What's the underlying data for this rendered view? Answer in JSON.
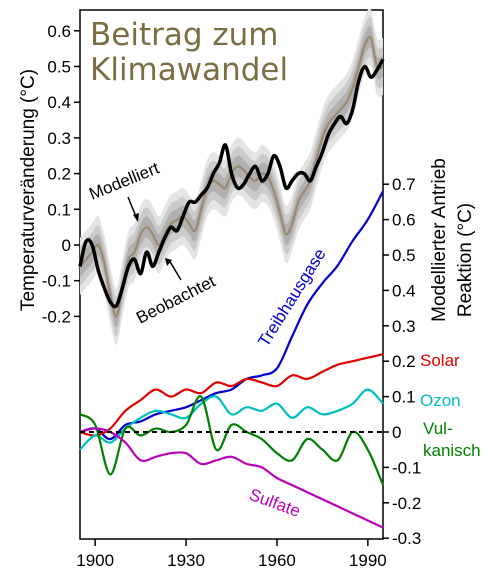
{
  "chart_data": [
    {
      "type": "line",
      "title": "Beitrag zum Klimawandel",
      "ylabel": "Temperaturveränderung (°C)",
      "ylim": [
        -0.3,
        0.65
      ],
      "yticks": [
        "0.6",
        "0.5",
        "0.4",
        "0.3",
        "0.2",
        "0.1",
        "0",
        "-0.1",
        "-0.2"
      ],
      "xlim": [
        1895,
        1995
      ],
      "xticks": [
        "1900",
        "1930",
        "1960",
        "1990"
      ],
      "uncertainty_band": true,
      "series": [
        {
          "name": "Modelliert",
          "color": "#9b8a70",
          "x": [
            1895,
            1897,
            1899,
            1901,
            1903,
            1905,
            1907,
            1909,
            1911,
            1913,
            1915,
            1917,
            1919,
            1921,
            1923,
            1925,
            1927,
            1929,
            1931,
            1933,
            1935,
            1937,
            1939,
            1941,
            1943,
            1945,
            1947,
            1949,
            1951,
            1953,
            1955,
            1957,
            1959,
            1961,
            1963,
            1965,
            1967,
            1969,
            1971,
            1973,
            1975,
            1977,
            1979,
            1981,
            1983,
            1985,
            1987,
            1989,
            1991,
            1993,
            1995
          ],
          "values": [
            -0.06,
            -0.04,
            -0.02,
            0.0,
            -0.05,
            -0.14,
            -0.2,
            -0.12,
            -0.04,
            -0.02,
            0.03,
            0.05,
            0.03,
            0.0,
            0.03,
            0.06,
            0.07,
            0.08,
            0.06,
            0.04,
            0.1,
            0.16,
            0.18,
            0.17,
            0.16,
            0.2,
            0.22,
            0.21,
            0.19,
            0.18,
            0.2,
            0.19,
            0.15,
            0.09,
            0.03,
            0.06,
            0.12,
            0.15,
            0.18,
            0.24,
            0.3,
            0.34,
            0.36,
            0.38,
            0.4,
            0.44,
            0.5,
            0.56,
            0.58,
            0.5,
            0.5
          ]
        },
        {
          "name": "Beobachtet",
          "color": "#000000",
          "x": [
            1895,
            1897,
            1899,
            1901,
            1903,
            1905,
            1907,
            1909,
            1911,
            1913,
            1915,
            1917,
            1919,
            1921,
            1923,
            1925,
            1927,
            1929,
            1931,
            1933,
            1935,
            1937,
            1939,
            1941,
            1943,
            1945,
            1947,
            1949,
            1951,
            1953,
            1955,
            1957,
            1959,
            1961,
            1963,
            1965,
            1967,
            1969,
            1971,
            1973,
            1975,
            1977,
            1979,
            1981,
            1983,
            1985,
            1987,
            1989,
            1991,
            1993,
            1995
          ],
          "values": [
            -0.06,
            0.01,
            0.0,
            -0.07,
            -0.12,
            -0.16,
            -0.17,
            -0.12,
            -0.06,
            -0.04,
            -0.08,
            -0.02,
            -0.06,
            -0.02,
            0.02,
            0.05,
            0.04,
            0.08,
            0.12,
            0.12,
            0.14,
            0.16,
            0.2,
            0.23,
            0.28,
            0.2,
            0.16,
            0.17,
            0.2,
            0.22,
            0.18,
            0.2,
            0.25,
            0.22,
            0.16,
            0.18,
            0.2,
            0.2,
            0.18,
            0.22,
            0.26,
            0.31,
            0.34,
            0.36,
            0.34,
            0.38,
            0.46,
            0.5,
            0.47,
            0.49,
            0.52
          ]
        }
      ]
    },
    {
      "type": "line",
      "ylabel": "Modellierter Antrieb Reaktion (°C)",
      "ylim": [
        -0.3,
        0.7
      ],
      "yticks": [
        "0.7",
        "0.6",
        "0.5",
        "0.4",
        "0.3",
        "0.2",
        "0.1",
        "0",
        "-0.1",
        "-0.2",
        "-0.3"
      ],
      "xlim": [
        1895,
        1995
      ],
      "series": [
        {
          "name": "Treibhausgase",
          "color": "#0000cc",
          "x": [
            1895,
            1900,
            1905,
            1910,
            1915,
            1920,
            1925,
            1930,
            1935,
            1940,
            1945,
            1950,
            1955,
            1960,
            1965,
            1970,
            1975,
            1980,
            1985,
            1990,
            1995
          ],
          "values": [
            0.0,
            0.01,
            -0.02,
            0.02,
            0.03,
            0.05,
            0.06,
            0.07,
            0.09,
            0.11,
            0.12,
            0.15,
            0.16,
            0.18,
            0.27,
            0.36,
            0.42,
            0.47,
            0.54,
            0.6,
            0.68
          ]
        },
        {
          "name": "Solar",
          "color": "#e00000",
          "x": [
            1895,
            1900,
            1905,
            1910,
            1915,
            1920,
            1925,
            1930,
            1935,
            1940,
            1945,
            1950,
            1955,
            1960,
            1965,
            1970,
            1975,
            1980,
            1985,
            1990,
            1995
          ],
          "values": [
            0.0,
            -0.01,
            0.01,
            0.06,
            0.09,
            0.12,
            0.1,
            0.12,
            0.11,
            0.14,
            0.13,
            0.15,
            0.14,
            0.13,
            0.16,
            0.15,
            0.17,
            0.19,
            0.2,
            0.21,
            0.22
          ]
        },
        {
          "name": "Ozon",
          "color": "#00bfbf",
          "x": [
            1895,
            1900,
            1905,
            1910,
            1915,
            1920,
            1925,
            1930,
            1935,
            1940,
            1945,
            1950,
            1955,
            1960,
            1965,
            1970,
            1975,
            1980,
            1985,
            1990,
            1995
          ],
          "values": [
            -0.05,
            -0.01,
            -0.03,
            0.01,
            0.04,
            0.06,
            0.05,
            0.04,
            0.08,
            0.1,
            0.05,
            0.07,
            0.06,
            0.08,
            0.04,
            0.07,
            0.05,
            0.06,
            0.08,
            0.12,
            0.08
          ]
        },
        {
          "name": "Vulkanisch",
          "label_lines": [
            "Vul-",
            "kanisch"
          ],
          "color": "#008000",
          "x": [
            1895,
            1900,
            1905,
            1910,
            1915,
            1920,
            1925,
            1930,
            1935,
            1940,
            1945,
            1950,
            1955,
            1960,
            1965,
            1970,
            1975,
            1980,
            1985,
            1990,
            1995
          ],
          "values": [
            0.05,
            0.02,
            -0.12,
            0.01,
            -0.01,
            0.01,
            0.0,
            0.02,
            0.1,
            -0.05,
            0.02,
            0.0,
            -0.02,
            -0.06,
            -0.08,
            -0.02,
            -0.05,
            -0.08,
            0.0,
            -0.05,
            -0.15
          ]
        },
        {
          "name": "Sulfate",
          "color": "#bb00bb",
          "x": [
            1895,
            1900,
            1905,
            1910,
            1915,
            1920,
            1925,
            1930,
            1935,
            1940,
            1945,
            1950,
            1955,
            1960,
            1965,
            1970,
            1975,
            1980,
            1985,
            1990,
            1995
          ],
          "values": [
            0.0,
            0.01,
            0.0,
            -0.03,
            -0.08,
            -0.07,
            -0.06,
            -0.06,
            -0.09,
            -0.08,
            -0.07,
            -0.09,
            -0.1,
            -0.13,
            -0.15,
            -0.17,
            -0.19,
            -0.21,
            -0.23,
            -0.25,
            -0.27
          ]
        }
      ]
    }
  ],
  "annotations": {
    "modelliert": "Modelliert",
    "beobachtet": "Beobachtet"
  }
}
